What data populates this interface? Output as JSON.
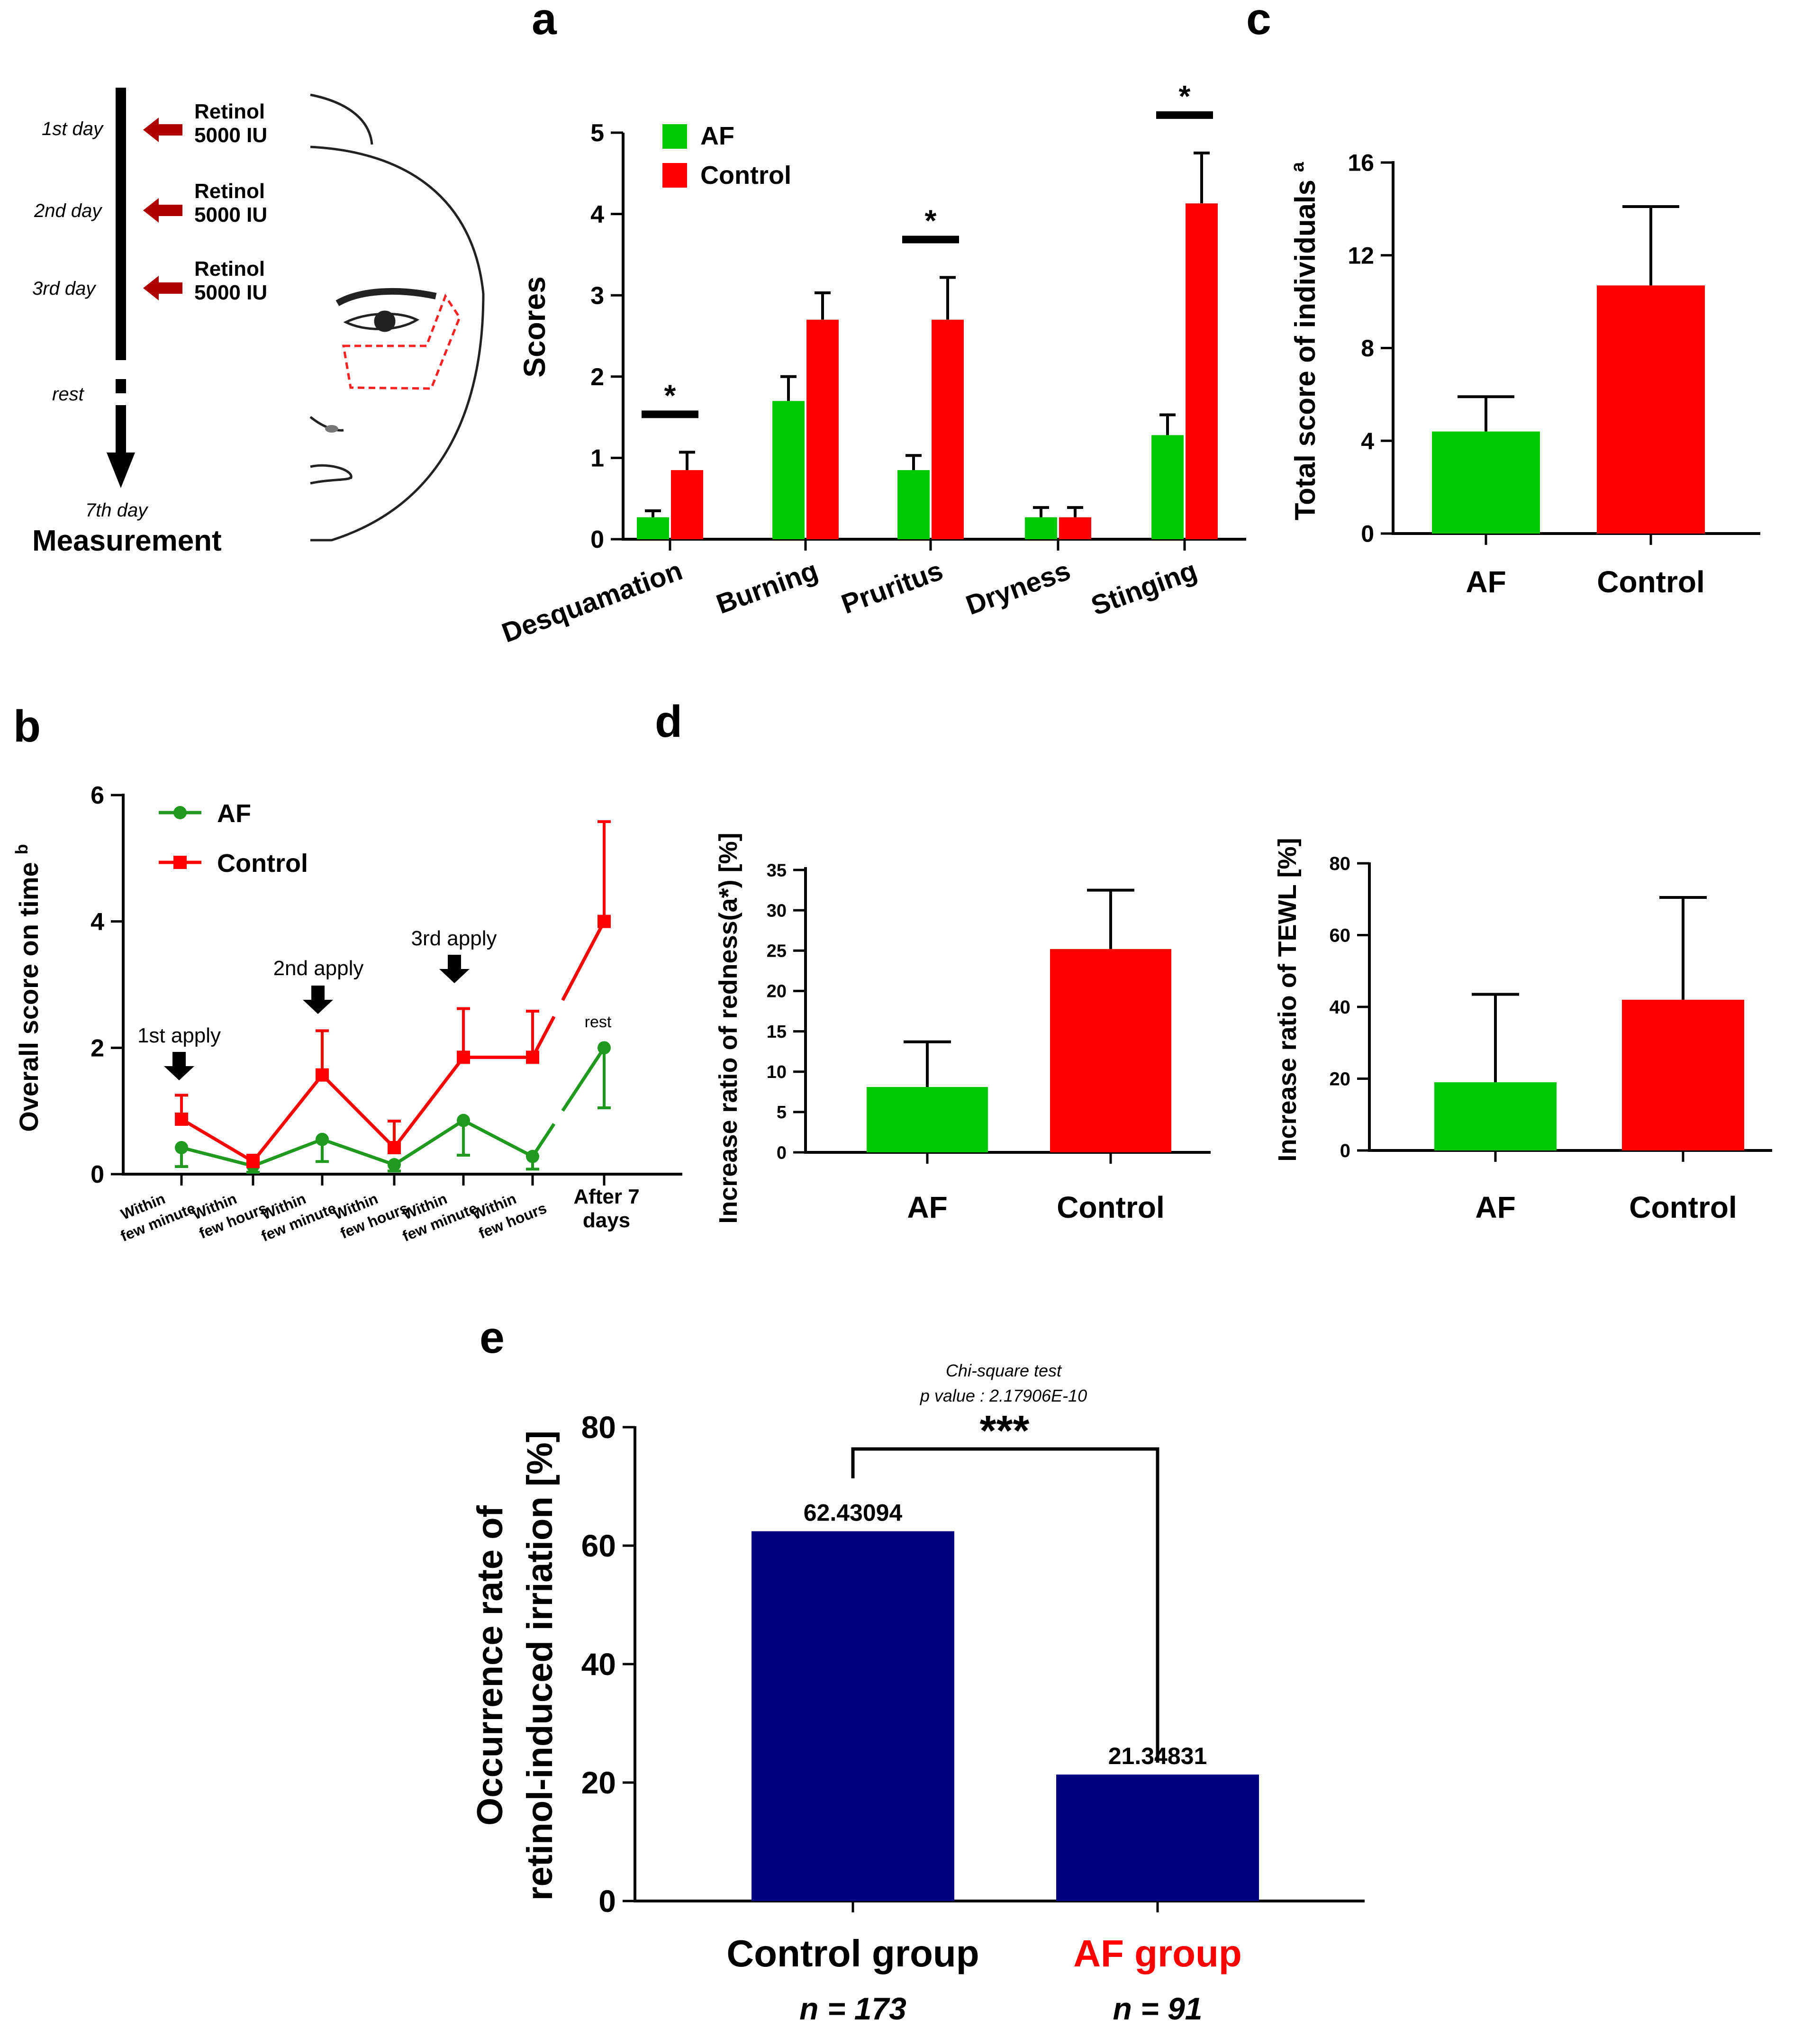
{
  "schematic": {
    "days": [
      {
        "label": "1st day",
        "treatment": "Retinol",
        "dose": "5000 IU"
      },
      {
        "label": "2nd day",
        "treatment": "Retinol",
        "dose": "5000 IU"
      },
      {
        "label": "3rd day",
        "treatment": "Retinol",
        "dose": "5000 IU"
      }
    ],
    "rest_label": "rest",
    "end_label": "7th day",
    "measurement_label": "Measurement"
  },
  "colors": {
    "af": "#00c800",
    "control": "#ff0000",
    "af_line": "#1f9a1f",
    "navy": "#000080",
    "dark_red": "#c00000"
  },
  "chart_data": [
    {
      "id": "a",
      "panel_label": "a",
      "type": "bar",
      "title": "",
      "xlabel": "",
      "ylabel": "Scores",
      "ylim": [
        0,
        5
      ],
      "yticks": [
        "0",
        "1",
        "2",
        "3",
        "4",
        "5"
      ],
      "categories": [
        "Desquamation",
        "Burning",
        "Pruritus",
        "Dryness",
        "Stinging"
      ],
      "series": [
        {
          "name": "AF",
          "values": [
            0.27,
            1.7,
            0.85,
            0.27,
            1.28
          ],
          "errors": [
            0.08,
            0.3,
            0.18,
            0.12,
            0.25
          ]
        },
        {
          "name": "Control",
          "values": [
            0.85,
            2.7,
            2.7,
            0.27,
            4.13
          ],
          "errors": [
            0.22,
            0.33,
            0.52,
            0.12,
            0.62
          ]
        }
      ],
      "legend": [
        "AF",
        "Control"
      ],
      "legend_position": "top-left",
      "significance": [
        {
          "category": "Desquamation",
          "mark": "*"
        },
        {
          "category": "Pruritus",
          "mark": "*"
        },
        {
          "category": "Stinging",
          "mark": "*"
        }
      ]
    },
    {
      "id": "b",
      "panel_label": "b",
      "type": "line",
      "ylabel": "Overall score on time",
      "ylabel_superscript": "b",
      "ylim": [
        0,
        6
      ],
      "yticks": [
        "0",
        "2",
        "4",
        "6"
      ],
      "x": [
        [
          "Within",
          "few minute"
        ],
        [
          "Within",
          "few hours"
        ],
        [
          "Within",
          "few minute"
        ],
        [
          "Within",
          "few hours"
        ],
        [
          "Within",
          "few minute"
        ],
        [
          "Within",
          "few hours"
        ],
        [
          "After 7",
          "days"
        ]
      ],
      "series": [
        {
          "name": "AF",
          "values": [
            0.42,
            0.13,
            0.55,
            0.15,
            0.85,
            0.28,
            2.0
          ],
          "errors": [
            0.3,
            0.1,
            0.35,
            0.1,
            0.55,
            0.2,
            0.95
          ]
        },
        {
          "name": "Control",
          "values": [
            0.87,
            0.2,
            1.57,
            0.42,
            1.85,
            1.85,
            4.0
          ],
          "errors": [
            0.38,
            0.1,
            0.7,
            0.42,
            0.77,
            0.73,
            1.58
          ]
        }
      ],
      "legend": [
        "AF",
        "Control"
      ],
      "legend_position": "top-left",
      "annotations": [
        "1st apply",
        "2nd apply",
        "3rd apply",
        "rest"
      ]
    },
    {
      "id": "c",
      "panel_label": "c",
      "type": "bar",
      "ylabel": "Total score of individuals",
      "ylabel_superscript": "a",
      "ylim": [
        0,
        16
      ],
      "yticks": [
        "0",
        "4",
        "8",
        "12",
        "16"
      ],
      "categories": [
        "AF",
        "Control"
      ],
      "values": [
        4.4,
        10.7
      ],
      "errors": [
        1.5,
        3.4
      ]
    },
    {
      "id": "d1",
      "panel_label": "d",
      "type": "bar",
      "ylabel": "Increase ratio of redness(a*) [%]",
      "ylim": [
        0,
        35
      ],
      "yticks": [
        "0",
        "5",
        "10",
        "15",
        "20",
        "25",
        "30",
        "35"
      ],
      "categories": [
        "AF",
        "Control"
      ],
      "values": [
        8.1,
        25.2
      ],
      "errors": [
        5.6,
        7.3
      ]
    },
    {
      "id": "d2",
      "panel_label": "",
      "type": "bar",
      "ylabel": "Increase ratio of TEWL [%]",
      "ylim": [
        0,
        80
      ],
      "yticks": [
        "0",
        "20",
        "40",
        "60",
        "80"
      ],
      "categories": [
        "AF",
        "Control"
      ],
      "values": [
        19,
        42
      ],
      "errors": [
        24.5,
        28.5
      ]
    },
    {
      "id": "e",
      "panel_label": "e",
      "type": "bar",
      "ylabel_line1": "Occurrence rate of",
      "ylabel_line2": "retinol-induced irriation [%]",
      "ylim": [
        0,
        80
      ],
      "yticks": [
        "0",
        "20",
        "40",
        "60",
        "80"
      ],
      "categories": [
        "Control group",
        "AF group"
      ],
      "n_labels": [
        "n = 173",
        "n = 91"
      ],
      "values": [
        62.43094,
        21.34831
      ],
      "data_labels": [
        "62.43094",
        "21.34831"
      ],
      "test_label": "Chi-square test",
      "p_label": "p value : 2.17906E-10",
      "significance_mark": "***"
    }
  ]
}
